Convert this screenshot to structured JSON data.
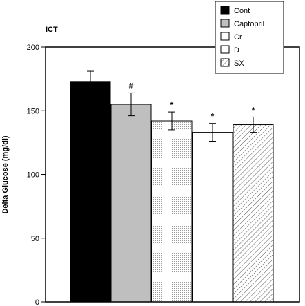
{
  "chart_data": {
    "type": "bar",
    "panel_label": "ICT",
    "ylabel": "Delta Glucose (mg/dl)",
    "xlabel": "",
    "ylim": [
      0,
      200
    ],
    "yticks": [
      "0",
      "50",
      "100",
      "150",
      "200"
    ],
    "grid": false,
    "legend_position": "top-right",
    "categories": [
      "Cont",
      "Captopril",
      "Cr",
      "D",
      "SX"
    ],
    "values": [
      173,
      155,
      142,
      133,
      139
    ],
    "errors": [
      8,
      9,
      7,
      7,
      6
    ],
    "annotations": [
      "",
      "#",
      "*",
      "*",
      "*"
    ],
    "fills": [
      "solid-black",
      "solid-gray",
      "dots",
      "white",
      "diagonal-hatch"
    ],
    "colors": {
      "black": "#000000",
      "gray": "#bfbfbf",
      "dots": "#9a9a9a",
      "white": "#ffffff",
      "hatch": "#555555"
    }
  }
}
